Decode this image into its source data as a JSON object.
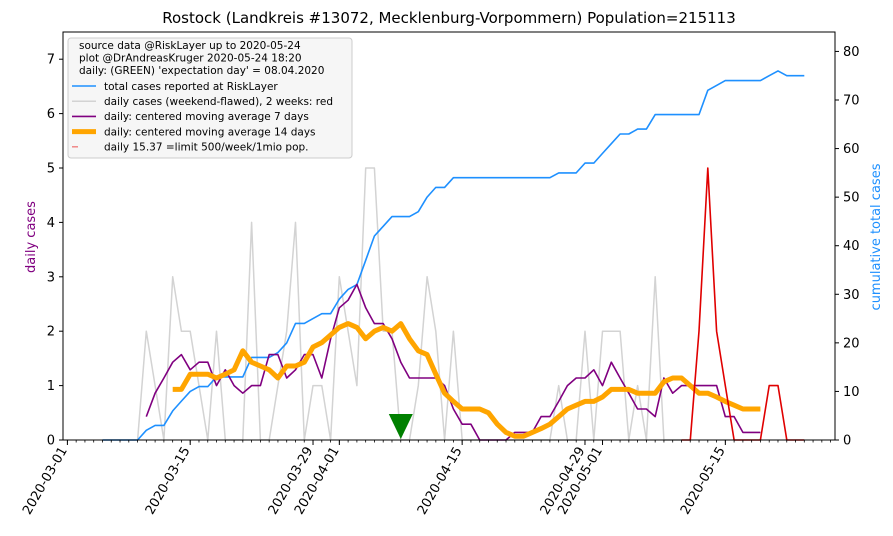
{
  "chart_data": {
    "type": "line",
    "title": "Rostock (Landkreis #13072, Mecklenburg-Vorpommern) Population=215113",
    "ylabel_left": "daily cases",
    "ylabel_right": "cumulative total cases",
    "ylim_left": [
      0,
      7.5
    ],
    "ylim_right": [
      0,
      84
    ],
    "yticks_left": [
      0,
      1,
      2,
      3,
      4,
      5,
      6,
      7
    ],
    "yticks_right": [
      0,
      10,
      20,
      30,
      40,
      50,
      60,
      70,
      80
    ],
    "xlim_days": [
      -0.5,
      87.5
    ],
    "start_date": "2020-03-01",
    "xtick_days": [
      0,
      14,
      28,
      31,
      45,
      59,
      61,
      75
    ],
    "xtick_labels": [
      "2020-03-01",
      "2020-03-15",
      "2020-03-29",
      "2020-04-01",
      "2020-04-15",
      "2020-04-29",
      "2020-05-01",
      "2020-05-15"
    ],
    "colors": {
      "total": "#1e90ff",
      "daily": "#d3d3d3",
      "ma7": "#800080",
      "ma14": "#ffa500",
      "recent": "#e00000",
      "limit": "#f08080",
      "expectation": "#008000",
      "left_label": "#800080",
      "right_label": "#1e90ff"
    },
    "legend": {
      "position": "top-left",
      "header": [
        "source data @RiskLayer up to 2020-05-24",
        "plot @DrAndreasKruger 2020-05-24 18:20",
        "daily: (GREEN) 'expectation day' = 08.04.2020"
      ],
      "entries": [
        "total cases reported at RiskLayer",
        "daily cases (weekend-flawed), 2 weeks: red",
        "daily: centered moving average 7 days",
        "daily: centered moving average 14 days",
        "daily 15.37 =limit 500/week/1mio pop."
      ]
    },
    "expectation_day": 38,
    "series": [
      {
        "name": "total cases reported at RiskLayer",
        "axis": "right",
        "points": [
          [
            4,
            0
          ],
          [
            8,
            0
          ],
          [
            9,
            2
          ],
          [
            10,
            3
          ],
          [
            11,
            3
          ],
          [
            12,
            6
          ],
          [
            13,
            8
          ],
          [
            14,
            10
          ],
          [
            15,
            11
          ],
          [
            16,
            11
          ],
          [
            17,
            13
          ],
          [
            18,
            13
          ],
          [
            19,
            13
          ],
          [
            20,
            13
          ],
          [
            21,
            17
          ],
          [
            22,
            17
          ],
          [
            23,
            17
          ],
          [
            24,
            18
          ],
          [
            25,
            20
          ],
          [
            26,
            24
          ],
          [
            27,
            24
          ],
          [
            28,
            25
          ],
          [
            29,
            26
          ],
          [
            30,
            26
          ],
          [
            31,
            29
          ],
          [
            32,
            31
          ],
          [
            33,
            32
          ],
          [
            34,
            37
          ],
          [
            35,
            42
          ],
          [
            36,
            44
          ],
          [
            37,
            46
          ],
          [
            38,
            46
          ],
          [
            39,
            46
          ],
          [
            40,
            47
          ],
          [
            41,
            50
          ],
          [
            42,
            52
          ],
          [
            43,
            52
          ],
          [
            44,
            54
          ],
          [
            45,
            54
          ],
          [
            46,
            54
          ],
          [
            47,
            54
          ],
          [
            48,
            54
          ],
          [
            49,
            54
          ],
          [
            50,
            54
          ],
          [
            51,
            54
          ],
          [
            52,
            54
          ],
          [
            53,
            54
          ],
          [
            54,
            54
          ],
          [
            55,
            54
          ],
          [
            56,
            55
          ],
          [
            57,
            55
          ],
          [
            58,
            55
          ],
          [
            59,
            57
          ],
          [
            60,
            57
          ],
          [
            61,
            59
          ],
          [
            62,
            61
          ],
          [
            63,
            63
          ],
          [
            64,
            63
          ],
          [
            65,
            64
          ],
          [
            66,
            64
          ],
          [
            67,
            67
          ],
          [
            68,
            67
          ],
          [
            69,
            67
          ],
          [
            70,
            67
          ],
          [
            71,
            67
          ],
          [
            72,
            67
          ],
          [
            73,
            72
          ],
          [
            74,
            73
          ],
          [
            75,
            74
          ],
          [
            76,
            74
          ],
          [
            77,
            74
          ],
          [
            78,
            74
          ],
          [
            79,
            74
          ],
          [
            80,
            75
          ],
          [
            81,
            76
          ],
          [
            82,
            75
          ],
          [
            83,
            75
          ],
          [
            84,
            75
          ]
        ]
      },
      {
        "name": "daily cases (weekend-flawed), 2 weeks: red",
        "axis": "left",
        "points": [
          [
            4,
            0
          ],
          [
            8,
            0
          ],
          [
            9,
            2
          ],
          [
            10,
            1
          ],
          [
            11,
            0
          ],
          [
            12,
            3
          ],
          [
            13,
            2
          ],
          [
            14,
            2
          ],
          [
            15,
            1
          ],
          [
            16,
            0
          ],
          [
            17,
            2
          ],
          [
            18,
            0
          ],
          [
            19,
            0
          ],
          [
            20,
            0
          ],
          [
            21,
            4
          ],
          [
            22,
            0
          ],
          [
            23,
            0
          ],
          [
            24,
            1
          ],
          [
            25,
            2
          ],
          [
            26,
            4
          ],
          [
            27,
            0
          ],
          [
            28,
            1
          ],
          [
            29,
            1
          ],
          [
            30,
            0
          ],
          [
            31,
            3
          ],
          [
            32,
            2
          ],
          [
            33,
            1
          ],
          [
            34,
            5
          ],
          [
            35,
            5
          ],
          [
            36,
            2
          ],
          [
            37,
            2
          ],
          [
            38,
            0
          ],
          [
            39,
            0
          ],
          [
            40,
            1
          ],
          [
            41,
            3
          ],
          [
            42,
            2
          ],
          [
            43,
            0
          ],
          [
            44,
            2
          ],
          [
            45,
            0
          ],
          [
            46,
            0
          ],
          [
            47,
            0
          ],
          [
            48,
            0
          ],
          [
            49,
            0
          ],
          [
            50,
            0
          ],
          [
            51,
            0
          ],
          [
            52,
            0
          ],
          [
            53,
            0
          ],
          [
            54,
            0
          ],
          [
            55,
            0
          ],
          [
            56,
            1
          ],
          [
            57,
            0
          ],
          [
            58,
            0
          ],
          [
            59,
            2
          ],
          [
            60,
            0
          ],
          [
            61,
            2
          ],
          [
            62,
            2
          ],
          [
            63,
            2
          ],
          [
            64,
            0
          ],
          [
            65,
            1
          ],
          [
            66,
            0
          ],
          [
            67,
            3
          ],
          [
            68,
            0
          ],
          [
            69,
            0
          ],
          [
            70,
            0
          ]
        ]
      },
      {
        "name": "daily: centered moving average 7 days",
        "axis": "left",
        "points": [
          [
            9,
            0.43
          ],
          [
            10,
            0.86
          ],
          [
            11,
            1.14
          ],
          [
            12,
            1.43
          ],
          [
            13,
            1.57
          ],
          [
            14,
            1.29
          ],
          [
            15,
            1.43
          ],
          [
            16,
            1.43
          ],
          [
            17,
            1.0
          ],
          [
            18,
            1.29
          ],
          [
            19,
            1.0
          ],
          [
            20,
            0.86
          ],
          [
            21,
            1.0
          ],
          [
            22,
            1.0
          ],
          [
            23,
            1.57
          ],
          [
            24,
            1.57
          ],
          [
            25,
            1.14
          ],
          [
            26,
            1.29
          ],
          [
            27,
            1.57
          ],
          [
            28,
            1.57
          ],
          [
            29,
            1.14
          ],
          [
            30,
            1.86
          ],
          [
            31,
            2.43
          ],
          [
            32,
            2.57
          ],
          [
            33,
            2.86
          ],
          [
            34,
            2.43
          ],
          [
            35,
            2.14
          ],
          [
            36,
            2.14
          ],
          [
            37,
            1.86
          ],
          [
            38,
            1.43
          ],
          [
            39,
            1.14
          ],
          [
            40,
            1.14
          ],
          [
            41,
            1.14
          ],
          [
            42,
            1.14
          ],
          [
            43,
            1.0
          ],
          [
            44,
            0.57
          ],
          [
            45,
            0.29
          ],
          [
            46,
            0.29
          ],
          [
            47,
            0.0
          ],
          [
            48,
            0.0
          ],
          [
            49,
            0.0
          ],
          [
            50,
            0.0
          ],
          [
            51,
            0.14
          ],
          [
            52,
            0.14
          ],
          [
            53,
            0.14
          ],
          [
            54,
            0.43
          ],
          [
            55,
            0.43
          ],
          [
            56,
            0.71
          ],
          [
            57,
            1.0
          ],
          [
            58,
            1.14
          ],
          [
            59,
            1.14
          ],
          [
            60,
            1.29
          ],
          [
            61,
            1.0
          ],
          [
            62,
            1.43
          ],
          [
            63,
            1.14
          ],
          [
            64,
            0.86
          ],
          [
            65,
            0.57
          ],
          [
            66,
            0.57
          ],
          [
            67,
            0.43
          ],
          [
            68,
            1.14
          ],
          [
            69,
            0.86
          ],
          [
            70,
            1.0
          ],
          [
            71,
            1.0
          ],
          [
            72,
            1.0
          ],
          [
            73,
            1.0
          ],
          [
            74,
            1.0
          ],
          [
            75,
            0.43
          ],
          [
            76,
            0.43
          ],
          [
            77,
            0.14
          ],
          [
            78,
            0.14
          ],
          [
            79,
            0.14
          ]
        ]
      },
      {
        "name": "daily: centered moving average 14 days",
        "axis": "left",
        "points": [
          [
            12,
            0.93
          ],
          [
            13,
            0.93
          ],
          [
            14,
            1.21
          ],
          [
            15,
            1.21
          ],
          [
            16,
            1.21
          ],
          [
            17,
            1.14
          ],
          [
            18,
            1.21
          ],
          [
            19,
            1.29
          ],
          [
            20,
            1.64
          ],
          [
            21,
            1.43
          ],
          [
            22,
            1.36
          ],
          [
            23,
            1.29
          ],
          [
            24,
            1.14
          ],
          [
            25,
            1.36
          ],
          [
            26,
            1.36
          ],
          [
            27,
            1.43
          ],
          [
            28,
            1.71
          ],
          [
            29,
            1.79
          ],
          [
            30,
            1.93
          ],
          [
            31,
            2.07
          ],
          [
            32,
            2.14
          ],
          [
            33,
            2.07
          ],
          [
            34,
            1.86
          ],
          [
            35,
            2.0
          ],
          [
            36,
            2.07
          ],
          [
            37,
            2.0
          ],
          [
            38,
            2.14
          ],
          [
            39,
            1.86
          ],
          [
            40,
            1.64
          ],
          [
            41,
            1.57
          ],
          [
            42,
            1.21
          ],
          [
            43,
            0.86
          ],
          [
            44,
            0.71
          ],
          [
            45,
            0.57
          ],
          [
            46,
            0.57
          ],
          [
            47,
            0.57
          ],
          [
            48,
            0.5
          ],
          [
            49,
            0.29
          ],
          [
            50,
            0.14
          ],
          [
            51,
            0.07
          ],
          [
            52,
            0.07
          ],
          [
            53,
            0.14
          ],
          [
            54,
            0.21
          ],
          [
            55,
            0.29
          ],
          [
            56,
            0.43
          ],
          [
            57,
            0.57
          ],
          [
            58,
            0.64
          ],
          [
            59,
            0.71
          ],
          [
            60,
            0.71
          ],
          [
            61,
            0.79
          ],
          [
            62,
            0.93
          ],
          [
            63,
            0.93
          ],
          [
            64,
            0.93
          ],
          [
            65,
            0.86
          ],
          [
            66,
            0.86
          ],
          [
            67,
            0.86
          ],
          [
            68,
            1.07
          ],
          [
            69,
            1.14
          ],
          [
            70,
            1.14
          ],
          [
            71,
            1.0
          ],
          [
            72,
            0.86
          ],
          [
            73,
            0.86
          ],
          [
            74,
            0.79
          ],
          [
            75,
            0.71
          ],
          [
            76,
            0.64
          ],
          [
            77,
            0.57
          ],
          [
            78,
            0.57
          ],
          [
            79,
            0.57
          ]
        ]
      },
      {
        "name": "daily cases, last 2 weeks (red)",
        "axis": "left",
        "points": [
          [
            70,
            0
          ],
          [
            71,
            0
          ],
          [
            72,
            2
          ],
          [
            73,
            5
          ],
          [
            74,
            2
          ],
          [
            75,
            1
          ],
          [
            76,
            0
          ],
          [
            77,
            0
          ],
          [
            78,
            0
          ],
          [
            79,
            0
          ],
          [
            80,
            1
          ],
          [
            81,
            1
          ],
          [
            82,
            0
          ],
          [
            83,
            0
          ],
          [
            84,
            0
          ]
        ]
      }
    ]
  }
}
